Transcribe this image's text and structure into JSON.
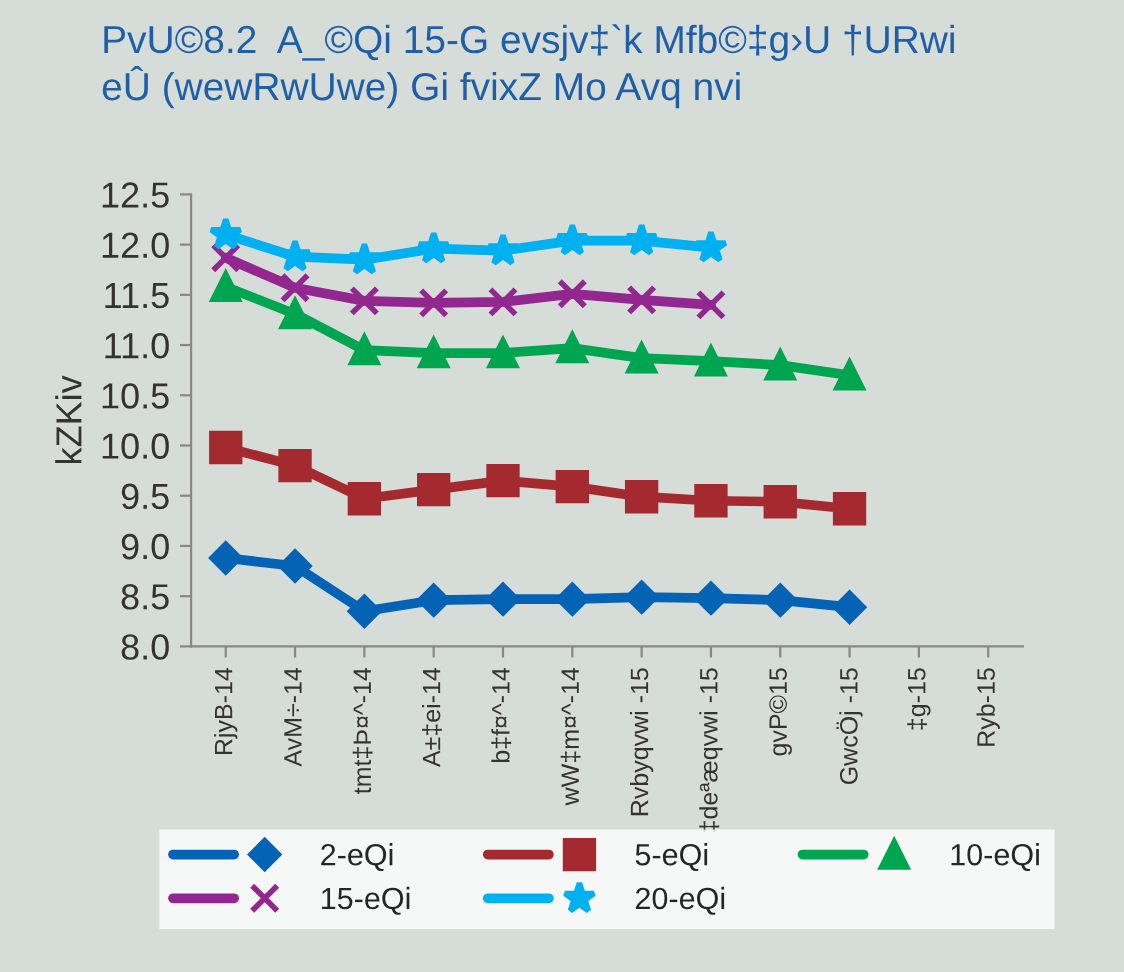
{
  "chart_data": {
    "type": "line",
    "title": "PvU©8.2  A_©Qi 15-G evsjv‡`k Mfb©‡g›U †URwi\neÛ (wewRwUwe) Gi fvixZ Mo Avq nvi",
    "ylabel": "kZKiv",
    "categories": [
      "RjyB-14",
      "AvM÷-14",
      "tmt‡Þ¤^-14",
      "A±‡ei-14",
      "b‡f¤^-14",
      "wW‡m¤^-14",
      "Rvbyqvwi -15",
      "‡deªæqvwi -15",
      "gvP©15",
      "GwcÖj -15",
      "‡g-15",
      "Ryb-15"
    ],
    "series": [
      {
        "name": "2-eQi",
        "color": "#0563b5",
        "marker": "diamond",
        "values": [
          8.88,
          8.8,
          8.35,
          8.46,
          8.47,
          8.47,
          8.49,
          8.48,
          8.46,
          8.39,
          null,
          null
        ]
      },
      {
        "name": "5-eQi",
        "color": "#a52a2f",
        "marker": "square",
        "values": [
          9.98,
          9.8,
          9.47,
          9.56,
          9.65,
          9.59,
          9.49,
          9.45,
          9.44,
          9.37,
          null,
          null
        ]
      },
      {
        "name": "10-eQi",
        "color": "#00a550",
        "marker": "triangle",
        "values": [
          11.58,
          11.31,
          10.95,
          10.92,
          10.92,
          10.97,
          10.87,
          10.84,
          10.8,
          10.7,
          null,
          null
        ]
      },
      {
        "name": "15-eQi",
        "color": "#92278f",
        "marker": "cross",
        "values": [
          11.87,
          11.57,
          11.44,
          11.42,
          11.43,
          11.51,
          11.45,
          11.4,
          null,
          null,
          null,
          null
        ]
      },
      {
        "name": "20-eQi",
        "color": "#00b0f0",
        "marker": "star",
        "values": [
          12.1,
          11.88,
          11.85,
          11.96,
          11.94,
          12.04,
          12.04,
          11.97,
          null,
          null,
          null,
          null
        ]
      }
    ],
    "ylim": [
      8.0,
      12.5
    ],
    "yticks": [
      {
        "value": 8.0,
        "label": "8.0"
      },
      {
        "value": 8.5,
        "label": "8.5"
      },
      {
        "value": 9.0,
        "label": "9.0"
      },
      {
        "value": 9.5,
        "label": "9.5"
      },
      {
        "value": 10.0,
        "label": "10.0"
      },
      {
        "value": 10.5,
        "label": "10.5"
      },
      {
        "value": 11.0,
        "label": "11.0"
      },
      {
        "value": 11.5,
        "label": "11.5"
      },
      {
        "value": 12.0,
        "label": "12.0"
      },
      {
        "value": 12.5,
        "label": "12.5"
      }
    ],
    "grid": false,
    "legend": "bottom"
  }
}
